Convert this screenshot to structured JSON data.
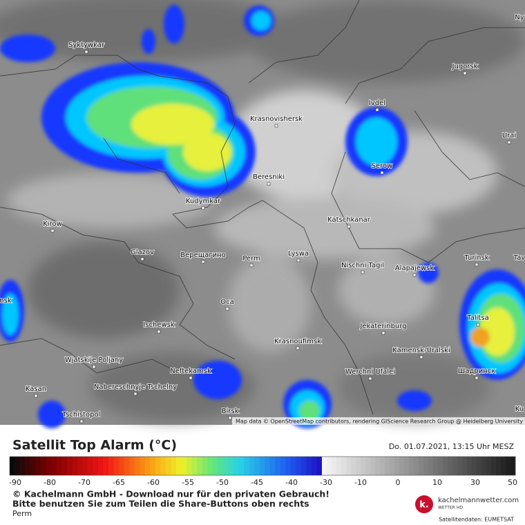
{
  "map": {
    "cities": [
      "Ny",
      "Syktywkar",
      "Jugorsk",
      "Ivdel",
      "Krasnovishersk",
      "Urai",
      "Serow",
      "Beresniki",
      "Kudymkar",
      "Kirow",
      "Katschkanar",
      "Glazov",
      "Верещагино",
      "Perm",
      "Lyswa",
      "Nischni Tagil",
      "Alapajewsk",
      "Turinsk",
      "Tav",
      "nsk",
      "Oca",
      "Ischewsk",
      "Jekaterinburg",
      "Talitsa",
      "Krasnoufimsk",
      "Kamensk-Uralski",
      "Wjatskije Poljany",
      "Neftekamsk",
      "Werchni Ufalei",
      "Шадринск",
      "Nabereschnyje Tschelny",
      "Kasan",
      "Birsk",
      "Tschistopol",
      "Ku"
    ],
    "attribution": "Map data © OpenStreetMap contributors, rendering GIScience Research Group @ Heidelberg University"
  },
  "legend": {
    "title": "Satellit Top Alarm (°C)",
    "datetime": "Do. 01.07.2021, 13:15 Uhr MESZ",
    "ticks": [
      -90,
      -80,
      -70,
      -65,
      -60,
      -55,
      -50,
      -45,
      -40,
      -30,
      -10,
      0,
      10,
      30,
      50
    ],
    "copyright": "© Kachelmann GmbH - Download nur für den privaten Gebrauch!",
    "share_note": "Bitte benutzen Sie zum Teilen die Share-Buttons oben rechts",
    "location": "Perm",
    "logo_mark": "k.",
    "logo_text": "kachelmannwetter.com",
    "logo_sub": "WETTER HD",
    "source": "Satellitendaten: EUMETSAT"
  }
}
